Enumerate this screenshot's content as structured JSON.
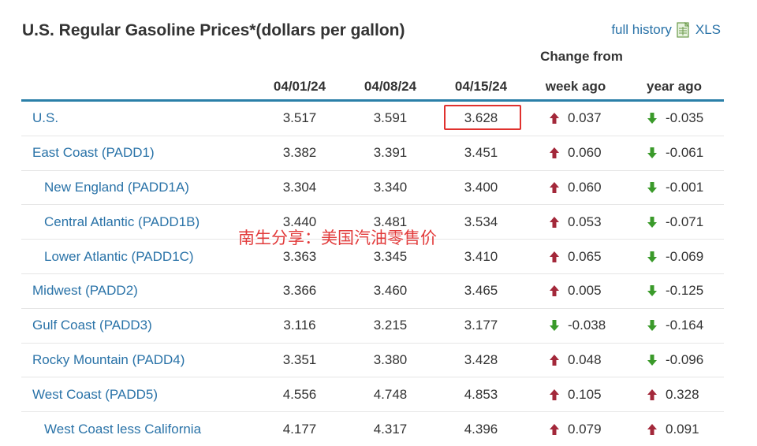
{
  "title": "U.S. Regular Gasoline Prices*(dollars per gallon)",
  "links": {
    "full_history": "full history",
    "xls": "XLS"
  },
  "headers": {
    "change_from": "Change from",
    "dates": [
      "04/01/24",
      "04/08/24",
      "04/15/24"
    ],
    "week_ago": "week ago",
    "year_ago": "year ago"
  },
  "rows": [
    {
      "name": "U.S.",
      "sub": false,
      "values": [
        "3.517",
        "3.591",
        "3.628"
      ],
      "week": "0.037",
      "week_dir": "up",
      "year": "-0.035",
      "year_dir": "down"
    },
    {
      "name": "East Coast (PADD1)",
      "sub": false,
      "values": [
        "3.382",
        "3.391",
        "3.451"
      ],
      "week": "0.060",
      "week_dir": "up",
      "year": "-0.061",
      "year_dir": "down"
    },
    {
      "name": "New England (PADD1A)",
      "sub": true,
      "values": [
        "3.304",
        "3.340",
        "3.400"
      ],
      "week": "0.060",
      "week_dir": "up",
      "year": "-0.001",
      "year_dir": "down"
    },
    {
      "name": "Central Atlantic (PADD1B)",
      "sub": true,
      "values": [
        "3.440",
        "3.481",
        "3.534"
      ],
      "week": "0.053",
      "week_dir": "up",
      "year": "-0.071",
      "year_dir": "down"
    },
    {
      "name": "Lower Atlantic (PADD1C)",
      "sub": true,
      "values": [
        "3.363",
        "3.345",
        "3.410"
      ],
      "week": "0.065",
      "week_dir": "up",
      "year": "-0.069",
      "year_dir": "down"
    },
    {
      "name": "Midwest (PADD2)",
      "sub": false,
      "values": [
        "3.366",
        "3.460",
        "3.465"
      ],
      "week": "0.005",
      "week_dir": "up",
      "year": "-0.125",
      "year_dir": "down"
    },
    {
      "name": "Gulf Coast (PADD3)",
      "sub": false,
      "values": [
        "3.116",
        "3.215",
        "3.177"
      ],
      "week": "-0.038",
      "week_dir": "down",
      "year": "-0.164",
      "year_dir": "down"
    },
    {
      "name": "Rocky Mountain (PADD4)",
      "sub": false,
      "values": [
        "3.351",
        "3.380",
        "3.428"
      ],
      "week": "0.048",
      "week_dir": "up",
      "year": "-0.096",
      "year_dir": "down"
    },
    {
      "name": "West Coast (PADD5)",
      "sub": false,
      "values": [
        "4.556",
        "4.748",
        "4.853"
      ],
      "week": "0.105",
      "week_dir": "up",
      "year": "0.328",
      "year_dir": "up"
    },
    {
      "name": "West Coast less California",
      "sub": true,
      "values": [
        "4.177",
        "4.317",
        "4.396"
      ],
      "week": "0.079",
      "week_dir": "up",
      "year": "0.091",
      "year_dir": "up"
    }
  ],
  "watermark": "南生分享：美国汽油零售价",
  "colors": {
    "up": "#a3283a",
    "down": "#3a9a2a",
    "link": "#2a73a8",
    "rule": "#2a7fa8",
    "highlight": "#e0312e"
  },
  "icons": {
    "up": "arrow-up-icon",
    "down": "arrow-down-icon",
    "xls": "spreadsheet-icon"
  }
}
